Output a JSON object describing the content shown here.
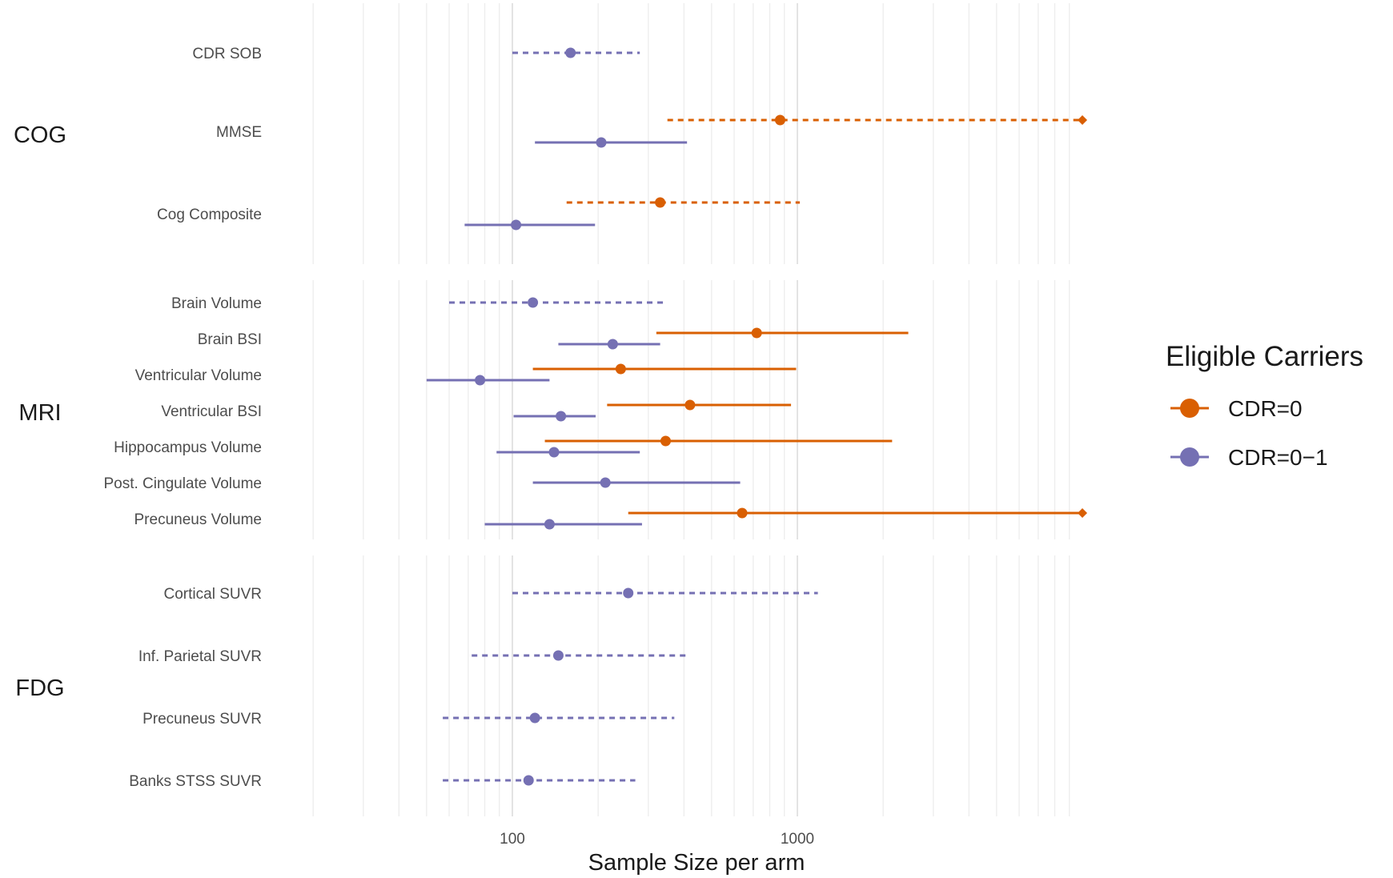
{
  "chart_data": {
    "type": "forest",
    "xlabel": "Sample Size per arm",
    "x_scale": "log10",
    "xlim": [
      20,
      10000
    ],
    "x_ticks": [
      100,
      1000
    ],
    "x_tick_labels": [
      "100",
      "1000"
    ],
    "grid": true,
    "legend": {
      "title": "Eligible Carriers",
      "position": "right",
      "entries": [
        {
          "label": "CDR=0",
          "color": "#d95f02"
        },
        {
          "label": "CDR=0−1",
          "color": "#7570b3"
        }
      ]
    },
    "line_types": {
      "solid": "significant",
      "dashed": "not significant"
    },
    "groups": [
      {
        "name": "COG",
        "rows": [
          {
            "label": "CDR SOB",
            "estimates": [
              {
                "series": "CDR=0−1",
                "point": 160,
                "lower": 100,
                "upper": 280,
                "style": "dashed"
              }
            ]
          },
          {
            "label": "MMSE",
            "estimates": [
              {
                "series": "CDR=0",
                "point": 870,
                "lower": 350,
                "upper": 10000,
                "style": "dashed",
                "truncated_upper": true
              },
              {
                "series": "CDR=0−1",
                "point": 205,
                "lower": 120,
                "upper": 410,
                "style": "solid"
              }
            ]
          },
          {
            "label": "Cog Composite",
            "estimates": [
              {
                "series": "CDR=0",
                "point": 330,
                "lower": 155,
                "upper": 1020,
                "style": "dashed"
              },
              {
                "series": "CDR=0−1",
                "point": 103,
                "lower": 68,
                "upper": 195,
                "style": "solid"
              }
            ]
          }
        ]
      },
      {
        "name": "MRI",
        "rows": [
          {
            "label": "Brain Volume",
            "estimates": [
              {
                "series": "CDR=0−1",
                "point": 118,
                "lower": 60,
                "upper": 340,
                "style": "dashed"
              }
            ]
          },
          {
            "label": "Brain BSI",
            "estimates": [
              {
                "series": "CDR=0",
                "point": 720,
                "lower": 320,
                "upper": 2450,
                "style": "solid"
              },
              {
                "series": "CDR=0−1",
                "point": 225,
                "lower": 145,
                "upper": 330,
                "style": "solid"
              }
            ]
          },
          {
            "label": "Ventricular Volume",
            "estimates": [
              {
                "series": "CDR=0",
                "point": 240,
                "lower": 118,
                "upper": 990,
                "style": "solid"
              },
              {
                "series": "CDR=0−1",
                "point": 77,
                "lower": 50,
                "upper": 135,
                "style": "solid"
              }
            ]
          },
          {
            "label": "Ventricular BSI",
            "estimates": [
              {
                "series": "CDR=0",
                "point": 420,
                "lower": 215,
                "upper": 950,
                "style": "solid"
              },
              {
                "series": "CDR=0−1",
                "point": 148,
                "lower": 101,
                "upper": 196,
                "style": "solid"
              }
            ]
          },
          {
            "label": "Hippocampus Volume",
            "estimates": [
              {
                "series": "CDR=0",
                "point": 345,
                "lower": 130,
                "upper": 2150,
                "style": "solid"
              },
              {
                "series": "CDR=0−1",
                "point": 140,
                "lower": 88,
                "upper": 280,
                "style": "solid"
              }
            ]
          },
          {
            "label": "Post. Cingulate Volume",
            "estimates": [
              {
                "series": "CDR=0−1",
                "point": 212,
                "lower": 118,
                "upper": 630,
                "style": "solid"
              }
            ]
          },
          {
            "label": "Precuneus Volume",
            "estimates": [
              {
                "series": "CDR=0",
                "point": 640,
                "lower": 255,
                "upper": 10000,
                "style": "solid",
                "truncated_upper": true
              },
              {
                "series": "CDR=0−1",
                "point": 135,
                "lower": 80,
                "upper": 285,
                "style": "solid"
              }
            ]
          }
        ]
      },
      {
        "name": "FDG",
        "rows": [
          {
            "label": "Cortical SUVR",
            "estimates": [
              {
                "series": "CDR=0−1",
                "point": 255,
                "lower": 100,
                "upper": 1180,
                "style": "dashed"
              }
            ]
          },
          {
            "label": "Inf. Parietal SUVR",
            "estimates": [
              {
                "series": "CDR=0−1",
                "point": 145,
                "lower": 72,
                "upper": 420,
                "style": "dashed"
              }
            ]
          },
          {
            "label": "Precuneus SUVR",
            "estimates": [
              {
                "series": "CDR=0−1",
                "point": 120,
                "lower": 57,
                "upper": 370,
                "style": "dashed"
              }
            ]
          },
          {
            "label": "Banks STSS SUVR",
            "estimates": [
              {
                "series": "CDR=0−1",
                "point": 114,
                "lower": 57,
                "upper": 270,
                "style": "dashed"
              }
            ]
          }
        ]
      }
    ]
  }
}
